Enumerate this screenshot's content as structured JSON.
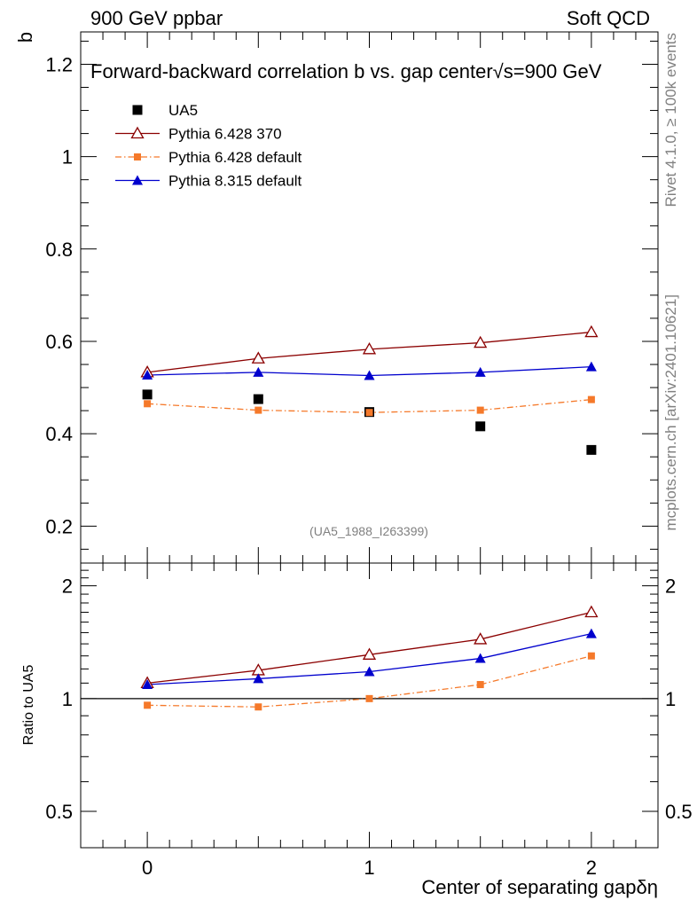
{
  "header": {
    "left": "900 GeV ppbar",
    "right": "Soft QCD"
  },
  "side_labels": {
    "rivet": "Rivet 4.1.0, ≥ 100k events",
    "mcplots": "mcplots.cern.ch [arXiv:2401.10621]"
  },
  "chart_data": [
    {
      "type": "scatter",
      "panel": "main",
      "title": "Forward-backward correlation b  vs. gap center",
      "title_suffix": "√s=900 GeV",
      "ylabel": "b",
      "xlabel": "",
      "xlim": [
        -0.3,
        2.3
      ],
      "ylim": [
        0.12,
        1.27
      ],
      "yticks": [
        0.2,
        0.4,
        0.6,
        0.8,
        1.0,
        1.2
      ],
      "ytick_labels": [
        "0.2",
        "0.4",
        "0.6",
        "0.8",
        "1",
        "1.2"
      ],
      "watermark": "(UA5_1988_I263399)",
      "x": [
        0,
        0.5,
        1,
        1.5,
        2
      ],
      "series": [
        {
          "name": "UA5",
          "color": "#000000",
          "marker": "square",
          "line": "none",
          "values": [
            0.485,
            0.475,
            0.447,
            0.416,
            0.365
          ]
        },
        {
          "name": "Pythia 6.428 370",
          "color": "#8b0000",
          "marker": "triangle-open",
          "line": "solid",
          "values": [
            0.533,
            0.563,
            0.583,
            0.597,
            0.62
          ]
        },
        {
          "name": "Pythia 6.428 default",
          "color": "#f5792a",
          "marker": "square-small",
          "line": "dashdot",
          "values": [
            0.465,
            0.451,
            0.446,
            0.451,
            0.474
          ]
        },
        {
          "name": "Pythia 8.315 default",
          "color": "#0000cd",
          "marker": "triangle-filled",
          "line": "solid",
          "values": [
            0.527,
            0.533,
            0.526,
            0.533,
            0.545
          ]
        }
      ]
    },
    {
      "type": "line",
      "panel": "ratio",
      "ylabel": "Ratio to UA5",
      "xlabel": "Center of separating gap",
      "xlabel_symbol": "δη",
      "xlim": [
        -0.3,
        2.3
      ],
      "ylim": [
        0.4,
        2.3
      ],
      "yscale": "log",
      "xticks": [
        0,
        1,
        2
      ],
      "xtick_labels": [
        "0",
        "1",
        "2"
      ],
      "yticks": [
        0.5,
        1,
        2
      ],
      "ytick_labels": [
        "0.5",
        "1",
        "2"
      ],
      "reference": 1,
      "x": [
        0,
        0.5,
        1,
        1.5,
        2
      ],
      "series": [
        {
          "name": "Pythia 6.428 370",
          "color": "#8b0000",
          "marker": "triangle-open",
          "line": "solid",
          "values": [
            1.1,
            1.19,
            1.31,
            1.44,
            1.7
          ]
        },
        {
          "name": "Pythia 6.428 default",
          "color": "#f5792a",
          "marker": "square-small",
          "line": "dashdot",
          "values": [
            0.96,
            0.95,
            1.0,
            1.09,
            1.3
          ]
        },
        {
          "name": "Pythia 8.315 default",
          "color": "#0000cd",
          "marker": "triangle-filled",
          "line": "solid",
          "values": [
            1.09,
            1.13,
            1.18,
            1.28,
            1.49
          ]
        }
      ]
    }
  ]
}
